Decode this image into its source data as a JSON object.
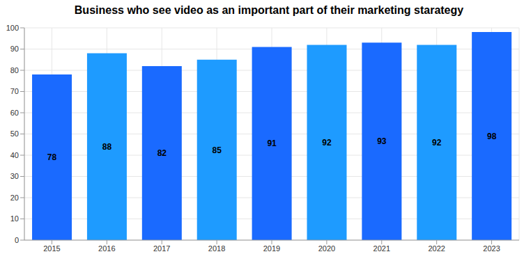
{
  "chart_data": {
    "type": "bar",
    "title": "Business who see video as an important part of their marketing starategy",
    "categories": [
      "2015",
      "2016",
      "2017",
      "2018",
      "2019",
      "2020",
      "2021",
      "2022",
      "2023"
    ],
    "values": [
      78,
      88,
      82,
      85,
      91,
      92,
      93,
      92,
      98
    ],
    "colors": [
      "#1a6aff",
      "#1e9bff",
      "#1a6aff",
      "#1e9bff",
      "#1a6aff",
      "#1e9bff",
      "#1a6aff",
      "#1e9bff",
      "#1a6aff"
    ],
    "ylim": [
      0,
      100
    ],
    "yticks": [
      0,
      10,
      20,
      30,
      40,
      50,
      60,
      70,
      80,
      90,
      100
    ],
    "grid": true,
    "data_labels": true
  }
}
